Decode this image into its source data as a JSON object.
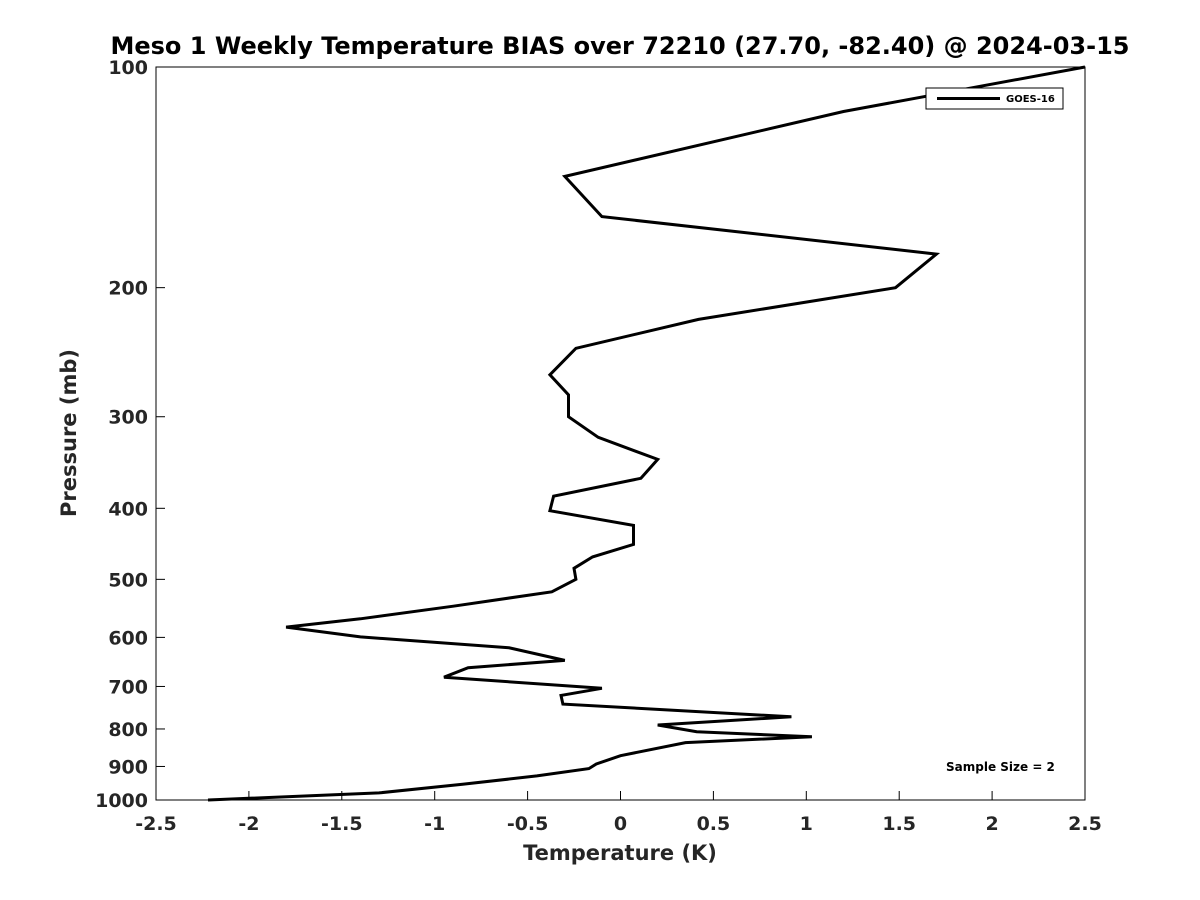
{
  "chart_data": {
    "type": "line",
    "title": "Meso 1 Weekly Temperature BIAS over 72210 (27.70, -82.40) @ 2024-03-15",
    "xlabel": "Temperature (K)",
    "ylabel": "Pressure (mb)",
    "xlim": [
      -2.5,
      2.5
    ],
    "ylim": [
      1000,
      100
    ],
    "y_scale": "log",
    "y_reversed": true,
    "x_ticks": [
      -2.5,
      -2,
      -1.5,
      -1,
      -0.5,
      0,
      0.5,
      1,
      1.5,
      2,
      2.5
    ],
    "x_tick_labels": [
      "-2.5",
      "-2",
      "-1.5",
      "-1",
      "-0.5",
      "0",
      "0.5",
      "1",
      "1.5",
      "2",
      "2.5"
    ],
    "y_ticks": [
      100,
      200,
      300,
      400,
      500,
      600,
      700,
      800,
      900,
      1000
    ],
    "y_tick_labels": [
      "100",
      "200",
      "300",
      "400",
      "500",
      "600",
      "700",
      "800",
      "900",
      "1000"
    ],
    "grid": false,
    "legend_position": "top-right",
    "line_color": "#000000",
    "series": [
      {
        "name": "GOES-16",
        "points": [
          {
            "t": 2.5,
            "p": 100
          },
          {
            "t": 1.2,
            "p": 115
          },
          {
            "t": -0.3,
            "p": 141
          },
          {
            "t": -0.1,
            "p": 160
          },
          {
            "t": 1.7,
            "p": 180
          },
          {
            "t": 1.48,
            "p": 200
          },
          {
            "t": 0.42,
            "p": 221
          },
          {
            "t": -0.24,
            "p": 242
          },
          {
            "t": -0.38,
            "p": 263
          },
          {
            "t": -0.28,
            "p": 280
          },
          {
            "t": -0.28,
            "p": 300
          },
          {
            "t": -0.12,
            "p": 320
          },
          {
            "t": 0.2,
            "p": 343
          },
          {
            "t": 0.11,
            "p": 364
          },
          {
            "t": -0.36,
            "p": 385
          },
          {
            "t": -0.38,
            "p": 403
          },
          {
            "t": 0.07,
            "p": 422
          },
          {
            "t": 0.07,
            "p": 448
          },
          {
            "t": -0.15,
            "p": 466
          },
          {
            "t": -0.25,
            "p": 483
          },
          {
            "t": -0.24,
            "p": 500
          },
          {
            "t": -0.37,
            "p": 520
          },
          {
            "t": -0.9,
            "p": 544
          },
          {
            "t": -1.4,
            "p": 566
          },
          {
            "t": -1.8,
            "p": 581
          },
          {
            "t": -1.4,
            "p": 599
          },
          {
            "t": -0.6,
            "p": 620
          },
          {
            "t": -0.3,
            "p": 645
          },
          {
            "t": -0.82,
            "p": 660
          },
          {
            "t": -0.95,
            "p": 680
          },
          {
            "t": -0.1,
            "p": 704
          },
          {
            "t": -0.32,
            "p": 720
          },
          {
            "t": -0.31,
            "p": 740
          },
          {
            "t": 0.92,
            "p": 770
          },
          {
            "t": 0.2,
            "p": 790
          },
          {
            "t": 0.41,
            "p": 807
          },
          {
            "t": 1.03,
            "p": 820
          },
          {
            "t": 0.35,
            "p": 835
          },
          {
            "t": 0.0,
            "p": 870
          },
          {
            "t": -0.13,
            "p": 893
          },
          {
            "t": -0.17,
            "p": 906
          },
          {
            "t": -0.45,
            "p": 927
          },
          {
            "t": -0.85,
            "p": 952
          },
          {
            "t": -1.3,
            "p": 978
          },
          {
            "t": -2.22,
            "p": 1000
          }
        ]
      }
    ],
    "annotation": "Sample Size = 2"
  }
}
